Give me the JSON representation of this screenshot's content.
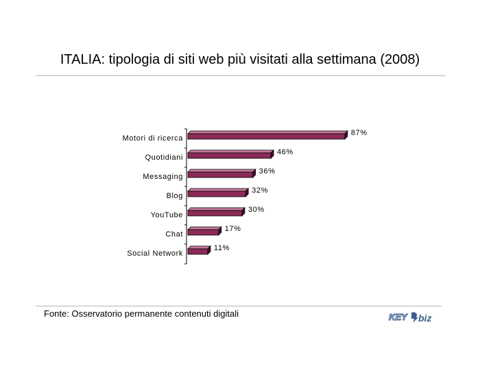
{
  "title": "ITALIA: tipologia di siti web più visitati alla settimana (2008)",
  "source": "Fonte: Osservatorio permanente contenuti digitali",
  "logo": {
    "text_key": "KEY",
    "text_biz": "biz"
  },
  "colors": {
    "bar_front": "#8b2a57",
    "bar_top": "#c77a9e",
    "bar_side": "#4a0f2c",
    "rule": "#b4b4b4"
  },
  "chart_data": {
    "type": "bar",
    "orientation": "horizontal",
    "title": "ITALIA: tipologia di siti web più visitati alla settimana (2008)",
    "categories": [
      "Motori di ricerca",
      "Quotidiani",
      "Messaging",
      "Blog",
      "YouTube",
      "Chat",
      "Social Network"
    ],
    "values": [
      87,
      46,
      36,
      32,
      30,
      17,
      11
    ],
    "value_labels": [
      "87%",
      "46%",
      "36%",
      "32%",
      "30%",
      "17%",
      "11%"
    ],
    "unit": "%",
    "xlim": [
      0,
      100
    ],
    "grid": false,
    "legend": "none"
  }
}
